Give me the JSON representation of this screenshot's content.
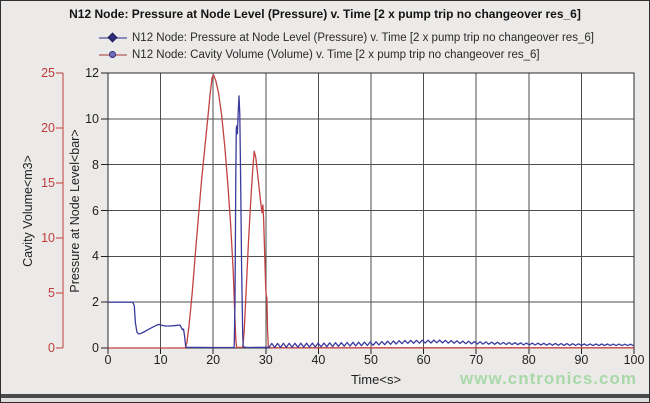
{
  "title": "N12 Node: Pressure at Node Level (Pressure) v. Time [2 x pump trip no changeover res_6]",
  "legend": [
    {
      "label": "N12 Node: Pressure at Node Level (Pressure) v. Time [2 x pump trip no changeover res_6]",
      "marker": "diamond",
      "line_color": "#8a8ab8",
      "marker_fill": "#2d2d7a",
      "marker_stroke": "#1e1e55"
    },
    {
      "label": "N12 Node: Cavity Volume (Volume) v. Time [2 x pump trip no changeover res_6]",
      "marker": "circle",
      "line_color": "#c99090",
      "marker_fill": "#6f6fbe",
      "marker_stroke": "#2d2d7a"
    }
  ],
  "watermark": {
    "text": "www.cntronics.com",
    "color": "#a9d8a9"
  },
  "axes": {
    "x": {
      "title": "Time<s>",
      "ticks": [
        0,
        10,
        20,
        30,
        40,
        50,
        60,
        70,
        80,
        90,
        100
      ],
      "range": [
        0,
        100
      ],
      "color": "#1f1f1f"
    },
    "y_pressure": {
      "title": "Pressure at Node Level<bar>",
      "ticks": [
        0,
        2,
        4,
        6,
        8,
        10,
        12
      ],
      "range": [
        0,
        12
      ],
      "color": "#1f1f1f"
    },
    "y_volume": {
      "title": "Cavity Volume<m3>",
      "ticks": [
        0,
        5,
        10,
        15,
        20,
        25
      ],
      "range": [
        0,
        25
      ],
      "color": "#c03c3c"
    }
  },
  "chart_data": {
    "type": "line",
    "xlim": [
      0,
      100
    ],
    "grid": true,
    "legend_position": "top",
    "plot_bg": "#ffffff",
    "grid_color": "#4d4d4d",
    "border_color": "#2b2b2b",
    "series": [
      {
        "name": "cavity_volume",
        "axis": "y_volume",
        "color": "#c24242",
        "points": [
          [
            0,
            0
          ],
          [
            14.7,
            0
          ],
          [
            15.0,
            0.5
          ],
          [
            15.4,
            2.0
          ],
          [
            16.0,
            5.0
          ],
          [
            16.6,
            8.5
          ],
          [
            17.2,
            12.0
          ],
          [
            17.8,
            15.3
          ],
          [
            18.4,
            18.2
          ],
          [
            19.0,
            21.0
          ],
          [
            19.4,
            23.0
          ],
          [
            19.8,
            24.6
          ],
          [
            20.1,
            24.8
          ],
          [
            20.5,
            24.3
          ],
          [
            21.0,
            23.2
          ],
          [
            21.6,
            21.2
          ],
          [
            22.2,
            18.3
          ],
          [
            22.8,
            14.8
          ],
          [
            23.3,
            11.3
          ],
          [
            23.8,
            7.0
          ],
          [
            24.1,
            3.0
          ],
          [
            24.3,
            0.8
          ],
          [
            24.45,
            0.05
          ],
          [
            25.6,
            0.05
          ],
          [
            25.9,
            1.5
          ],
          [
            26.3,
            5.5
          ],
          [
            26.7,
            9.5
          ],
          [
            27.1,
            13.0
          ],
          [
            27.5,
            16.2
          ],
          [
            27.8,
            17.9
          ],
          [
            28.1,
            17.3
          ],
          [
            28.5,
            15.6
          ],
          [
            28.9,
            13.8
          ],
          [
            29.15,
            12.8
          ],
          [
            29.3,
            12.3
          ],
          [
            29.45,
            13.0
          ],
          [
            29.6,
            11.5
          ],
          [
            29.8,
            8.5
          ],
          [
            30.0,
            5.2
          ],
          [
            30.1,
            4.8
          ],
          [
            30.2,
            4.5
          ],
          [
            30.35,
            1.5
          ],
          [
            30.5,
            0.05
          ],
          [
            31,
            0.02
          ],
          [
            100,
            0.02
          ]
        ]
      },
      {
        "name": "pressure",
        "axis": "y_pressure",
        "color": "#3b3b9d",
        "points": [
          [
            0,
            2
          ],
          [
            4.7,
            2
          ],
          [
            5.0,
            1.85
          ],
          [
            5.2,
            1.1
          ],
          [
            5.5,
            0.7
          ],
          [
            5.8,
            0.62
          ],
          [
            6.2,
            0.63
          ],
          [
            6.8,
            0.7
          ],
          [
            7.6,
            0.8
          ],
          [
            8.4,
            0.9
          ],
          [
            9.2,
            0.99
          ],
          [
            9.7,
            1.03
          ],
          [
            10.2,
            0.99
          ],
          [
            10.8,
            0.96
          ],
          [
            11.5,
            0.96
          ],
          [
            12.3,
            0.97
          ],
          [
            13.2,
            0.99
          ],
          [
            13.7,
            1.0
          ],
          [
            13.95,
            0.88
          ],
          [
            14.15,
            0.8
          ],
          [
            14.35,
            0.83
          ],
          [
            14.55,
            0.55
          ],
          [
            14.75,
            0.1
          ],
          [
            14.9,
            0.03
          ],
          [
            20,
            0.02
          ],
          [
            24.0,
            0.02
          ],
          [
            24.15,
            2.0
          ],
          [
            24.3,
            7.5
          ],
          [
            24.4,
            9.6
          ],
          [
            24.5,
            9.7
          ],
          [
            24.6,
            9.35
          ],
          [
            24.75,
            10.3
          ],
          [
            24.9,
            11.0
          ],
          [
            25.05,
            10.2
          ],
          [
            25.2,
            7.5
          ],
          [
            25.4,
            3.5
          ],
          [
            25.6,
            0.6
          ],
          [
            25.7,
            0.05
          ],
          [
            26.5,
            0.02
          ],
          [
            30.3,
            0.03
          ]
        ],
        "ripple": {
          "from": 30.6,
          "to": 100,
          "half_period": 0.55,
          "base": [
            [
              30.6,
              0.1
            ],
            [
              40,
              0.12
            ],
            [
              50,
              0.18
            ],
            [
              57,
              0.26
            ],
            [
              63,
              0.28
            ],
            [
              70,
              0.22
            ],
            [
              80,
              0.17
            ],
            [
              90,
              0.14
            ],
            [
              100,
              0.13
            ]
          ],
          "amp": [
            [
              30.6,
              0.1
            ],
            [
              45,
              0.09
            ],
            [
              60,
              0.07
            ],
            [
              75,
              0.05
            ],
            [
              100,
              0.035
            ]
          ]
        }
      }
    ]
  }
}
